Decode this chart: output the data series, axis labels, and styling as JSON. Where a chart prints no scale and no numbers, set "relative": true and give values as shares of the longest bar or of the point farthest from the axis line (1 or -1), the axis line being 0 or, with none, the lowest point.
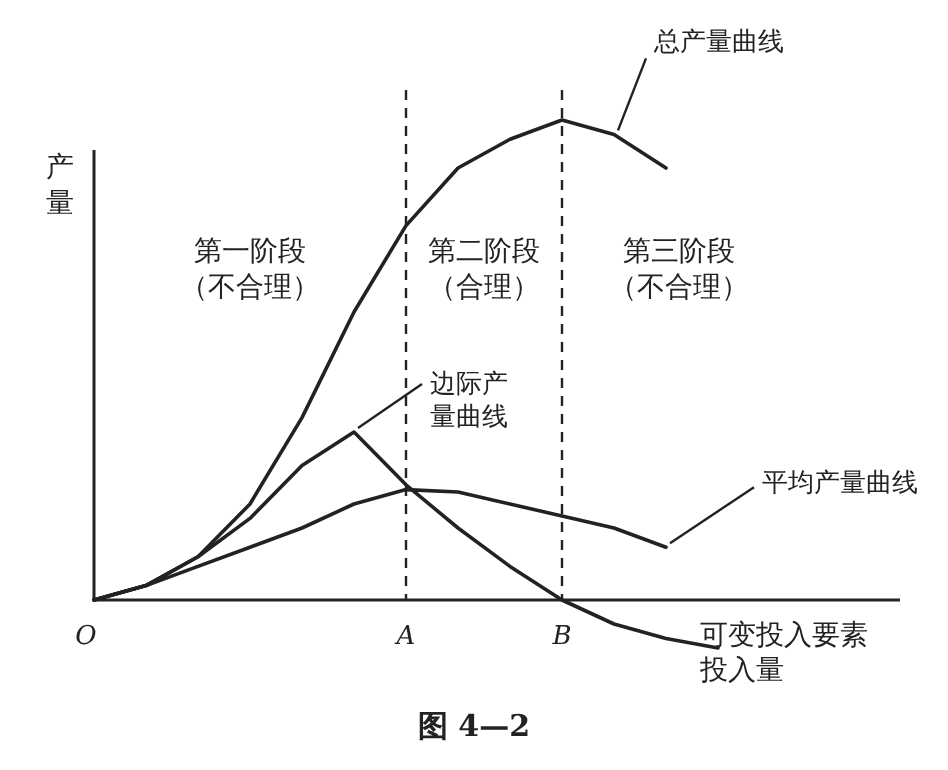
{
  "chart_data": {
    "type": "line",
    "relative": true,
    "title": "图 4—2",
    "ylabel": "产量",
    "xlabel": "可变投入要素投入量",
    "categories": [
      "O",
      null,
      null,
      null,
      null,
      null,
      "A",
      null,
      null,
      "B",
      null,
      null,
      null,
      null,
      null,
      null
    ],
    "series": [
      {
        "name": "总产量曲线",
        "color": "#222222",
        "values": [
          0,
          0.03,
          0.09,
          0.2,
          0.38,
          0.6,
          0.78,
          0.9,
          0.96,
          1,
          0.97,
          0.9,
          null,
          null,
          null,
          null
        ]
      },
      {
        "name": "边际产量曲线",
        "color": "#222222",
        "values": [
          0,
          0.03,
          0.09,
          0.17,
          0.28,
          0.35,
          0.24,
          0.15,
          0.07,
          0,
          -0.05,
          -0.08,
          -0.1,
          null,
          null,
          null
        ]
      },
      {
        "name": "平均产量曲线",
        "color": "#222222",
        "values": [
          0,
          0.03,
          0.07,
          0.11,
          0.15,
          0.2,
          0.23,
          0.225,
          0.2,
          0.175,
          0.15,
          0.11,
          null,
          null,
          null,
          null
        ]
      }
    ],
    "ref_lines": [
      {
        "axis": "x",
        "value": "A",
        "line_style": "dashed",
        "color": "#222222"
      },
      {
        "axis": "x",
        "value": "B",
        "line_style": "dashed",
        "color": "#222222"
      }
    ],
    "annotations": [
      "第一阶段",
      "（不合理）",
      "第二阶段",
      "（合理）",
      "第三阶段",
      "（不合理）"
    ],
    "line_style": "solid",
    "marker": "none"
  }
}
